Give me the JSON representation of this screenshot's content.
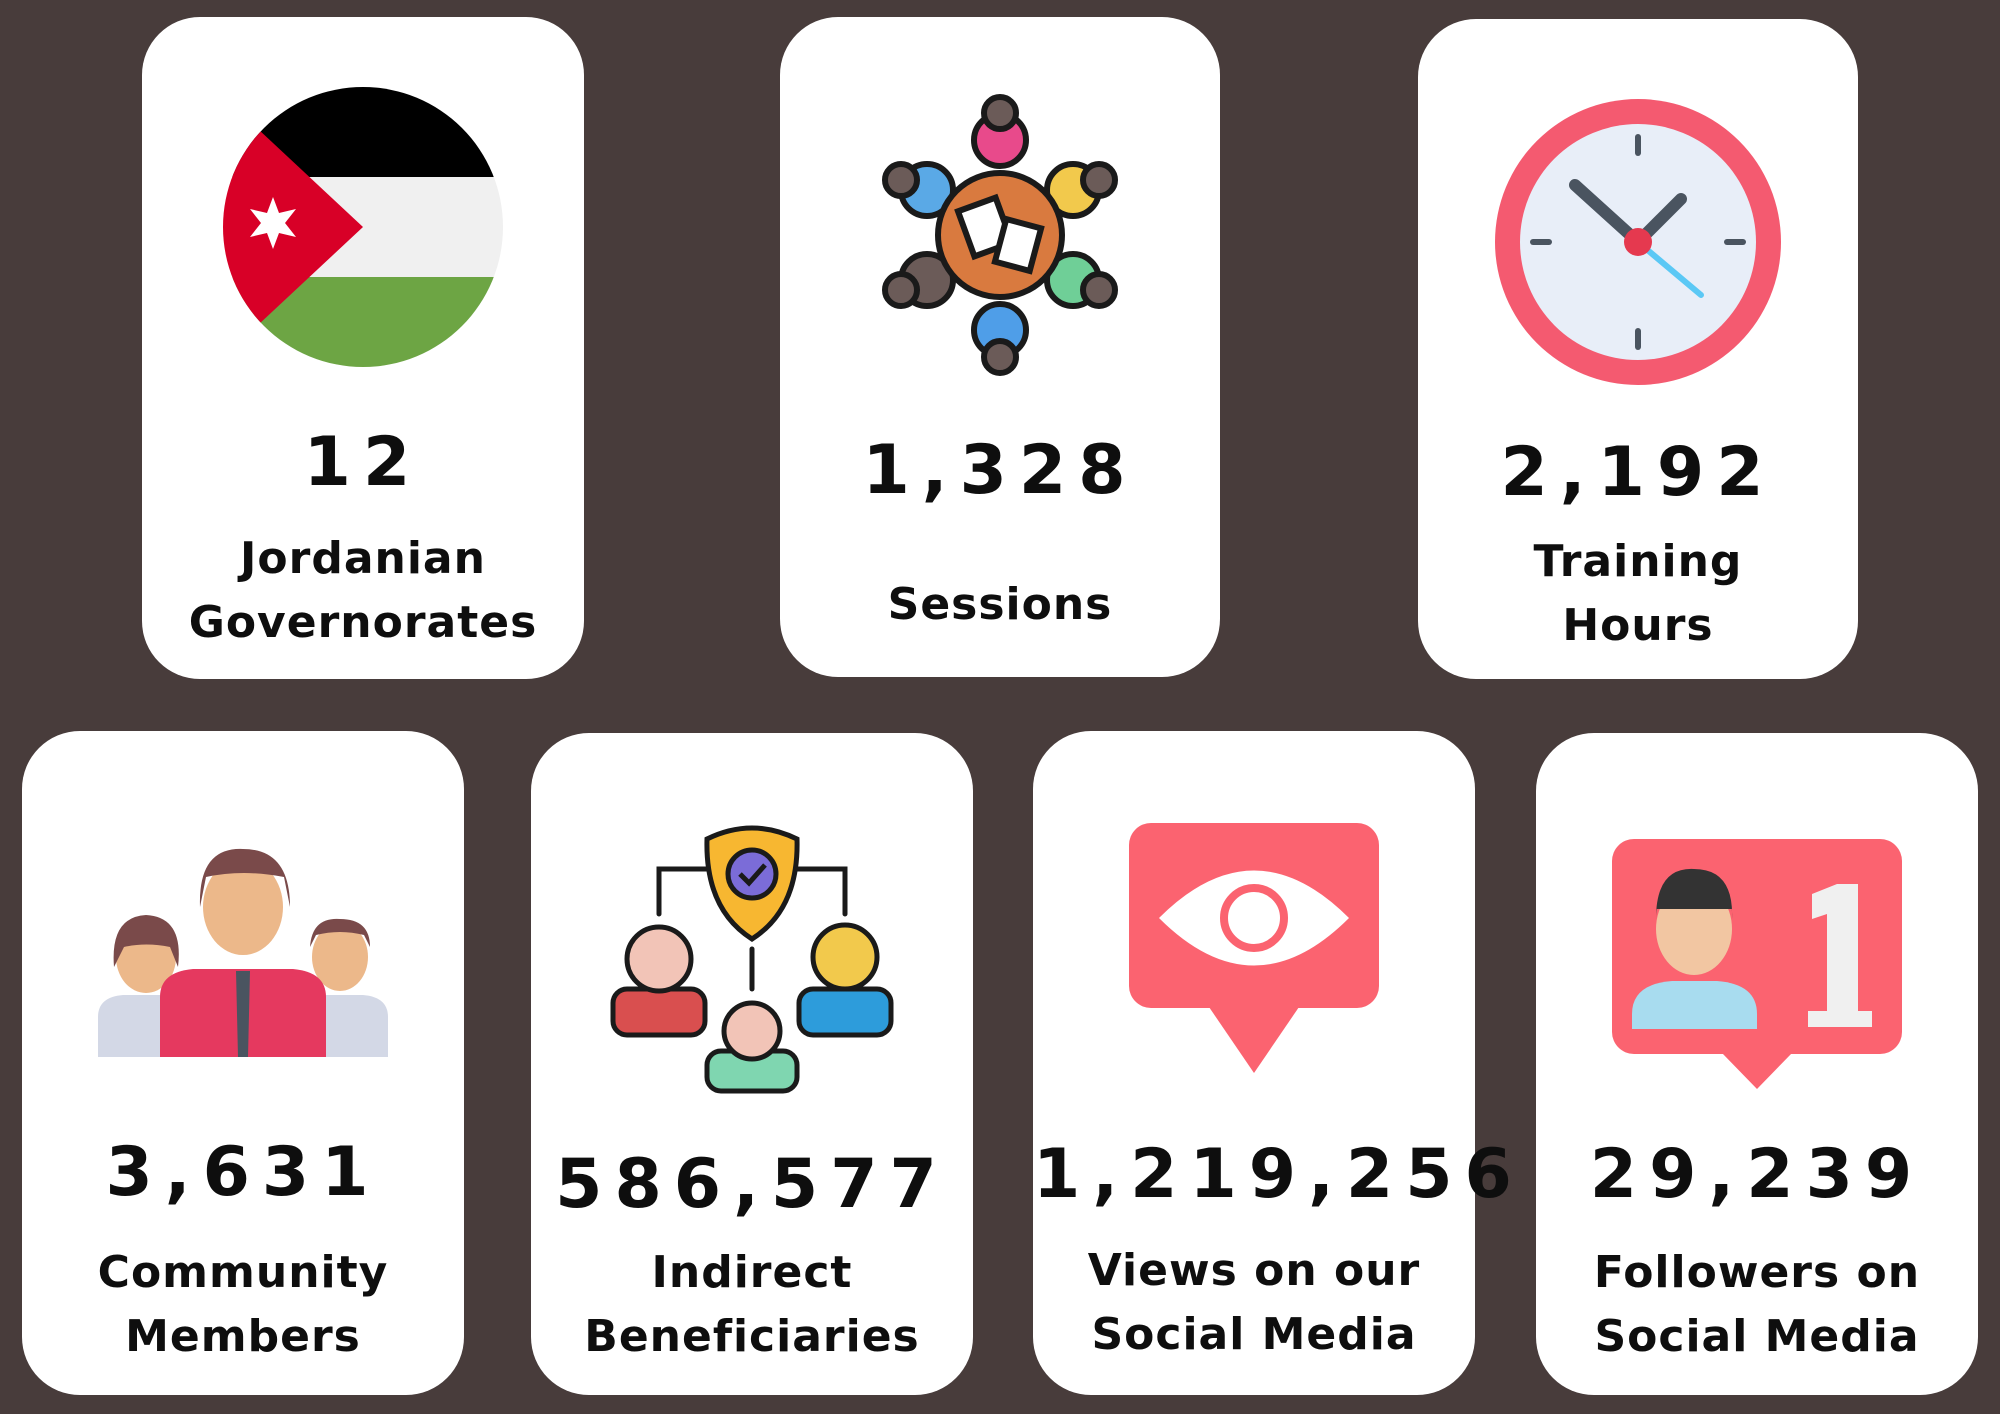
{
  "stats": [
    {
      "value": "12",
      "label_line1": "Jordanian",
      "label_line2": "Governorates",
      "icon": "jordan-flag-icon"
    },
    {
      "value": "1,328",
      "label_line1": "Sessions",
      "label_line2": "",
      "icon": "group-meeting-icon"
    },
    {
      "value": "2,192",
      "label_line1": "Training",
      "label_line2": "Hours",
      "icon": "clock-icon"
    },
    {
      "value": "3,631",
      "label_line1": "Community",
      "label_line2": "Members",
      "icon": "family-group-icon"
    },
    {
      "value": "586,577",
      "label_line1": "Indirect",
      "label_line2": "Beneficiaries",
      "icon": "network-shield-icon"
    },
    {
      "value": "1,219,256",
      "label_line1": "Views on our",
      "label_line2": "Social Media",
      "icon": "view-eye-icon"
    },
    {
      "value": "29,239",
      "label_line1": "Followers on",
      "label_line2": "Social Media",
      "icon": "follower-notification-icon"
    }
  ],
  "colors": {
    "background": "#483c3b",
    "card": "#ffffff",
    "text": "#0e0e0e",
    "accent_red": "#fb6370"
  }
}
